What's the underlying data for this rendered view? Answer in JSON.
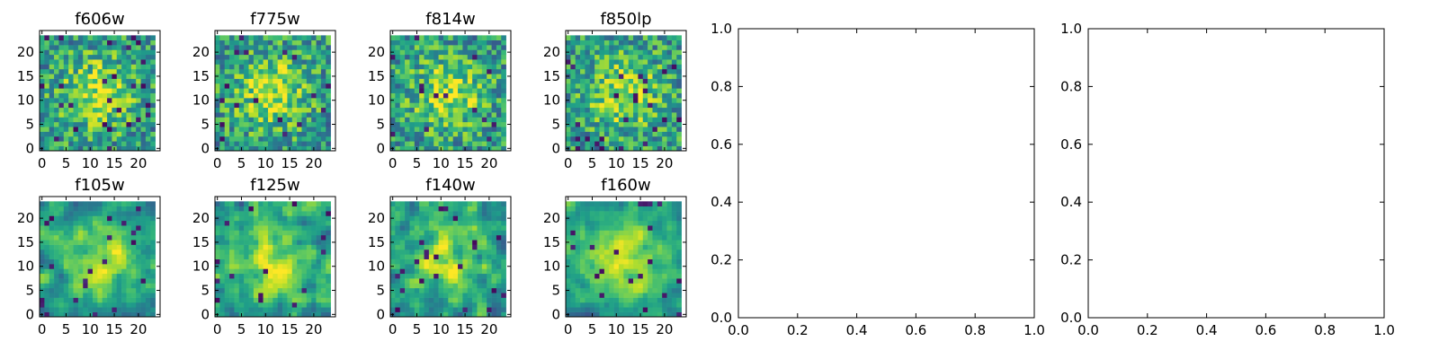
{
  "chart_data": [
    {
      "type": "heatmap",
      "title": "f606w",
      "x_ticks": [
        "0",
        "5",
        "10",
        "15",
        "20"
      ],
      "y_ticks": [
        "0",
        "5",
        "10",
        "15",
        "20"
      ],
      "grid_size": 24,
      "colormap": "viridis",
      "seed": 3
    },
    {
      "type": "heatmap",
      "title": "f775w",
      "x_ticks": [
        "0",
        "5",
        "10",
        "15",
        "20"
      ],
      "y_ticks": [
        "0",
        "5",
        "10",
        "15",
        "20"
      ],
      "grid_size": 24,
      "colormap": "viridis",
      "seed": 17
    },
    {
      "type": "heatmap",
      "title": "f814w",
      "x_ticks": [
        "0",
        "5",
        "10",
        "15",
        "20"
      ],
      "y_ticks": [
        "0",
        "5",
        "10",
        "15",
        "20"
      ],
      "grid_size": 24,
      "colormap": "viridis",
      "seed": 29
    },
    {
      "type": "heatmap",
      "title": "f850lp",
      "x_ticks": [
        "0",
        "5",
        "10",
        "15",
        "20"
      ],
      "y_ticks": [
        "0",
        "5",
        "10",
        "15",
        "20"
      ],
      "grid_size": 24,
      "colormap": "viridis",
      "seed": 41
    },
    {
      "type": "heatmap",
      "title": "f105w",
      "x_ticks": [
        "0",
        "5",
        "10",
        "15",
        "20"
      ],
      "y_ticks": [
        "0",
        "5",
        "10",
        "15",
        "20"
      ],
      "grid_size": 24,
      "colormap": "viridis",
      "seed": 53
    },
    {
      "type": "heatmap",
      "title": "f125w",
      "x_ticks": [
        "0",
        "5",
        "10",
        "15",
        "20"
      ],
      "y_ticks": [
        "0",
        "5",
        "10",
        "15",
        "20"
      ],
      "grid_size": 24,
      "colormap": "viridis",
      "seed": 67
    },
    {
      "type": "heatmap",
      "title": "f140w",
      "x_ticks": [
        "0",
        "5",
        "10",
        "15",
        "20"
      ],
      "y_ticks": [
        "0",
        "5",
        "10",
        "15",
        "20"
      ],
      "grid_size": 24,
      "colormap": "viridis",
      "seed": 79
    },
    {
      "type": "heatmap",
      "title": "f160w",
      "x_ticks": [
        "0",
        "5",
        "10",
        "15",
        "20"
      ],
      "y_ticks": [
        "0",
        "5",
        "10",
        "15",
        "20"
      ],
      "grid_size": 24,
      "colormap": "viridis",
      "seed": 97
    },
    {
      "type": "empty",
      "title": "",
      "xlim": [
        0,
        1
      ],
      "ylim": [
        0,
        1
      ],
      "x_ticks": [
        "0.0",
        "0.2",
        "0.4",
        "0.6",
        "0.8",
        "1.0"
      ],
      "y_ticks": [
        "0.0",
        "0.2",
        "0.4",
        "0.6",
        "0.8",
        "1.0"
      ]
    },
    {
      "type": "empty",
      "title": "",
      "xlim": [
        0,
        1
      ],
      "ylim": [
        0,
        1
      ],
      "x_ticks": [
        "0.0",
        "0.2",
        "0.4",
        "0.6",
        "0.8",
        "1.0"
      ],
      "y_ticks": [
        "0.0",
        "0.2",
        "0.4",
        "0.6",
        "0.8",
        "1.0"
      ]
    }
  ]
}
